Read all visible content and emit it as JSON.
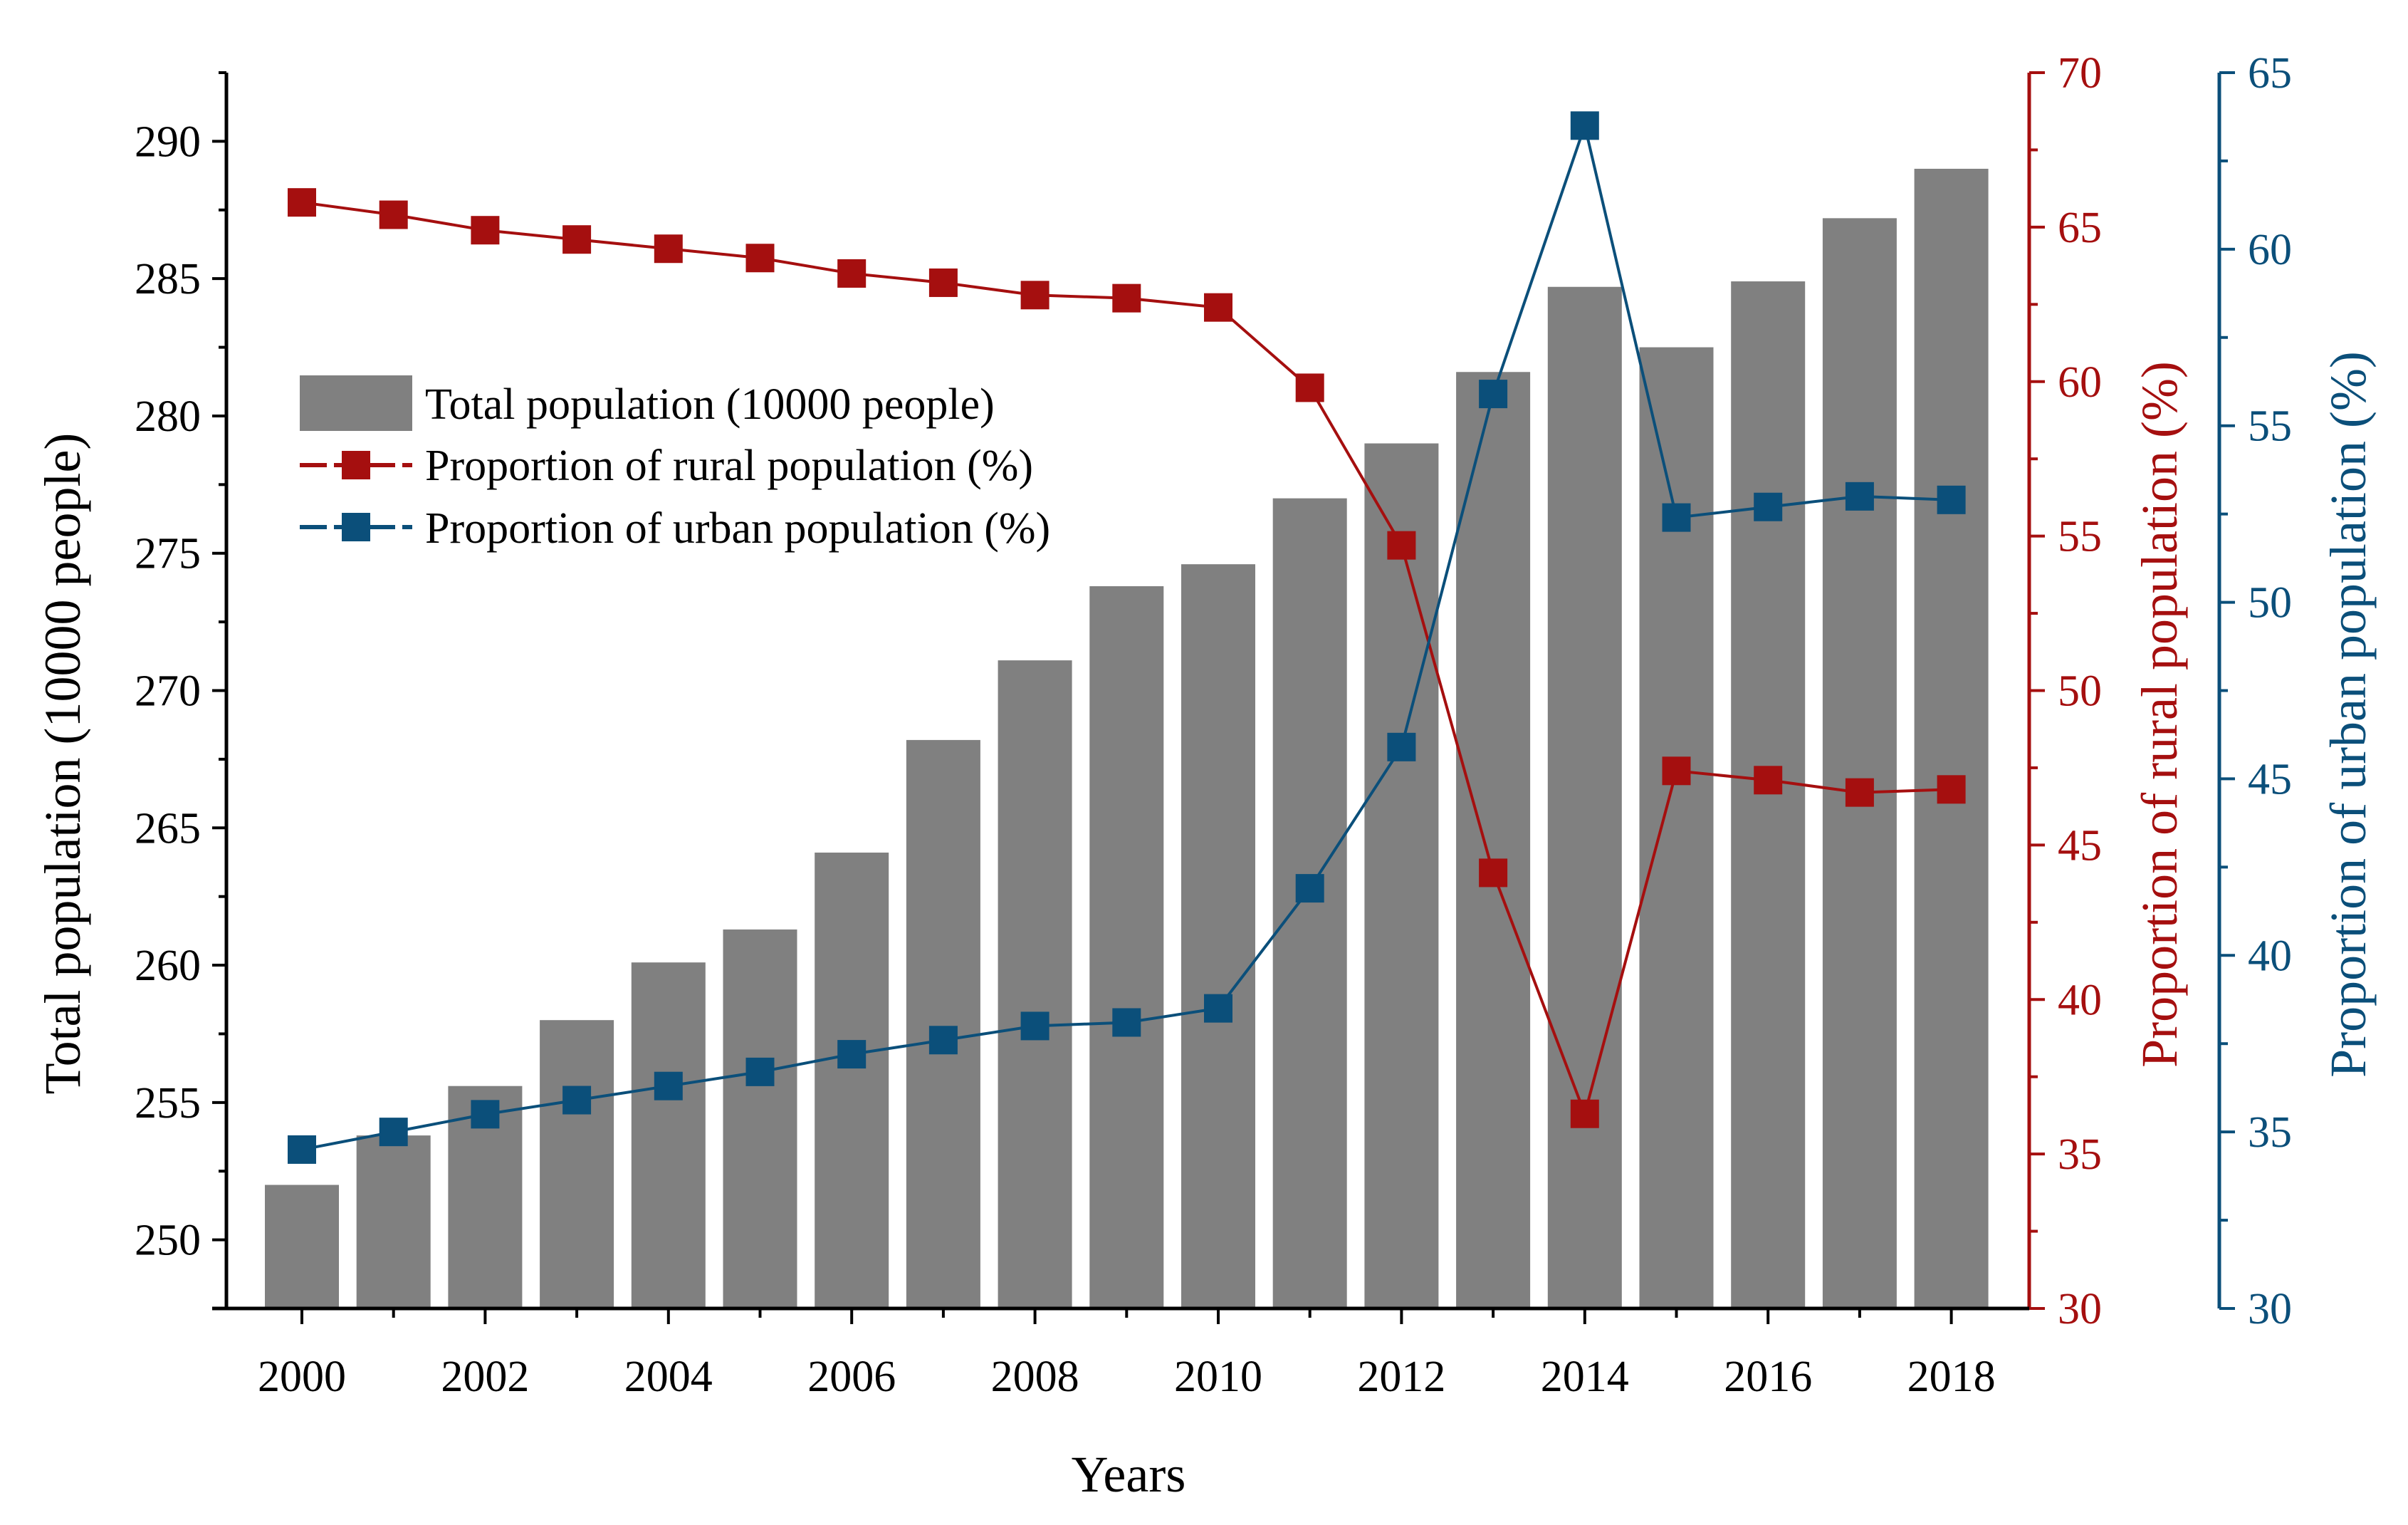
{
  "chart_data": {
    "type": "bar",
    "title": "",
    "xlabel": "Years",
    "categories": [
      "2000",
      "2001",
      "2002",
      "2003",
      "2004",
      "2005",
      "2006",
      "2007",
      "2008",
      "2009",
      "2010",
      "2011",
      "2012",
      "2013",
      "2014",
      "2015",
      "2016",
      "2017",
      "2018"
    ],
    "x_ticks": [
      "2000",
      "2002",
      "2004",
      "2006",
      "2008",
      "2010",
      "2012",
      "2014",
      "2016",
      "2018"
    ],
    "y_left": {
      "label": "Total population (10000 people)",
      "ylim": [
        247.5,
        292.5
      ],
      "ticks": [
        "250",
        "255",
        "260",
        "265",
        "270",
        "275",
        "280",
        "285",
        "290"
      ],
      "tick_values": [
        250,
        255,
        260,
        265,
        270,
        275,
        280,
        285,
        290
      ]
    },
    "y_rural": {
      "label": "Proportion of rural population (%)",
      "ylim": [
        30,
        70
      ],
      "ticks": [
        "30",
        "35",
        "40",
        "45",
        "50",
        "55",
        "60",
        "65",
        "70"
      ],
      "tick_values": [
        30,
        35,
        40,
        45,
        50,
        55,
        60,
        65,
        70
      ],
      "color": "#a50f0f"
    },
    "y_urban": {
      "label": "Proportion of urban population (%)",
      "ylim": [
        30,
        65
      ],
      "ticks": [
        "30",
        "35",
        "40",
        "45",
        "50",
        "55",
        "60",
        "65"
      ],
      "tick_values": [
        30,
        35,
        40,
        45,
        50,
        55,
        60,
        65
      ],
      "color": "#0b4f7a"
    },
    "series": [
      {
        "name": "Total population (10000 people)",
        "kind": "bar",
        "axis": "left",
        "color": "#808080",
        "values": [
          252.0,
          253.8,
          255.6,
          258.0,
          260.1,
          261.3,
          264.1,
          268.2,
          271.1,
          273.8,
          274.6,
          277.0,
          279.0,
          281.6,
          284.7,
          282.5,
          284.9,
          287.2,
          289.0
        ]
      },
      {
        "name": "Proportion of rural population (%)",
        "kind": "line",
        "axis": "rural",
        "color": "#a50f0f",
        "values": [
          65.8,
          65.4,
          64.9,
          64.6,
          64.3,
          64.0,
          63.5,
          63.2,
          62.8,
          62.7,
          62.4,
          59.8,
          54.7,
          44.1,
          36.3,
          47.4,
          47.1,
          46.7,
          46.8
        ]
      },
      {
        "name": "Proportion of urban population (%)",
        "kind": "line",
        "axis": "urban",
        "color": "#0b4f7a",
        "values": [
          34.5,
          35.0,
          35.5,
          35.9,
          36.3,
          36.7,
          37.2,
          37.6,
          38.0,
          38.1,
          38.5,
          41.9,
          45.9,
          55.9,
          63.5,
          52.4,
          52.7,
          53.0,
          52.9
        ]
      }
    ],
    "legend": {
      "position": "upper-left",
      "items": [
        "Total population (10000 people)",
        "Proportion of rural population (%)",
        "Proportion of urban population (%)"
      ]
    }
  }
}
